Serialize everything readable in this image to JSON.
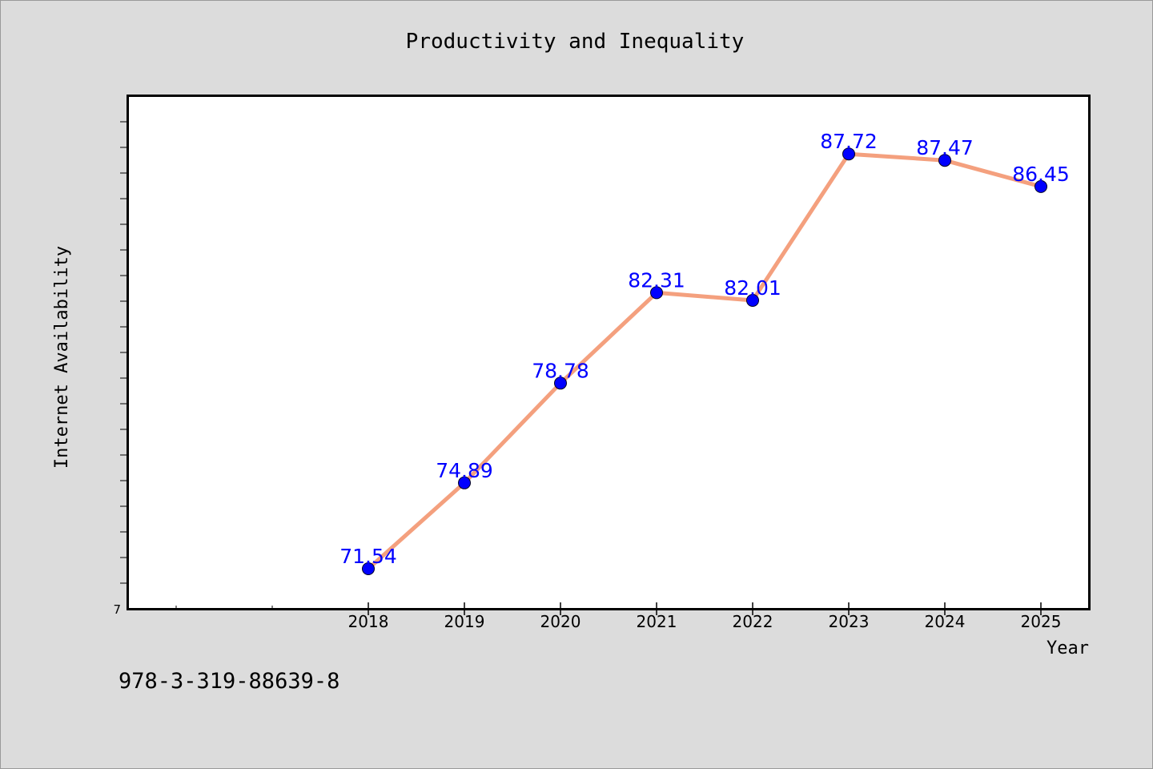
{
  "chart_data": {
    "type": "line",
    "title": "Productivity and Inequality",
    "xlabel": "Year",
    "ylabel": "Internet Availability",
    "categories": [
      "2018",
      "2019",
      "2020",
      "2021",
      "2022",
      "2023",
      "2024",
      "2025"
    ],
    "series": [
      {
        "values": [
          71.54,
          74.89,
          78.78,
          82.31,
          82.01,
          87.72,
          87.47,
          86.45
        ],
        "data_labels": [
          "71.54",
          "74.89",
          "78.78",
          "82.31",
          "82.01",
          "87.72",
          "87.47",
          "86.45"
        ]
      }
    ],
    "y_tick_labels": [
      "7"
    ],
    "ylim": [
      71.54,
      91.54
    ],
    "grid": false,
    "line_color": "#f4a07e",
    "marker_color": "#0000ff",
    "label_color": "#0000ff"
  },
  "footer_text": "978-3-319-88639-8"
}
